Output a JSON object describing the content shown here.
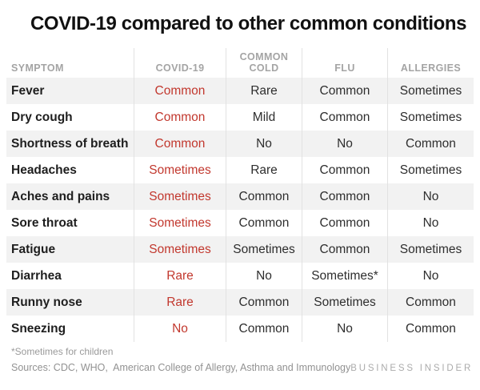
{
  "title": "COVID-19 compared to other common conditions",
  "colors": {
    "accent_red": "#c2382e",
    "row_shade": "#f2f2f2",
    "divider": "#e2e2e2",
    "header_text": "#a4a4a4",
    "body_text": "#2e2e2e"
  },
  "table": {
    "columns": [
      "SYMPTOM",
      "COVID-19",
      "COMMON COLD",
      "FLU",
      "ALLERGIES"
    ],
    "rows": [
      {
        "symptom": "Fever",
        "covid19": "Common",
        "common_cold": "Rare",
        "flu": "Common",
        "allergies": "Sometimes"
      },
      {
        "symptom": "Dry cough",
        "covid19": "Common",
        "common_cold": "Mild",
        "flu": "Common",
        "allergies": "Sometimes"
      },
      {
        "symptom": "Shortness of breath",
        "covid19": "Common",
        "common_cold": "No",
        "flu": "No",
        "allergies": "Common"
      },
      {
        "symptom": "Headaches",
        "covid19": "Sometimes",
        "common_cold": "Rare",
        "flu": "Common",
        "allergies": "Sometimes"
      },
      {
        "symptom": "Aches and pains",
        "covid19": "Sometimes",
        "common_cold": "Common",
        "flu": "Common",
        "allergies": "No"
      },
      {
        "symptom": "Sore throat",
        "covid19": "Sometimes",
        "common_cold": "Common",
        "flu": "Common",
        "allergies": "No"
      },
      {
        "symptom": "Fatigue",
        "covid19": "Sometimes",
        "common_cold": "Sometimes",
        "flu": "Common",
        "allergies": "Sometimes"
      },
      {
        "symptom": "Diarrhea",
        "covid19": "Rare",
        "common_cold": "No",
        "flu": "Sometimes*",
        "allergies": "No"
      },
      {
        "symptom": "Runny nose",
        "covid19": "Rare",
        "common_cold": "Common",
        "flu": "Sometimes",
        "allergies": "Common"
      },
      {
        "symptom": "Sneezing",
        "covid19": "No",
        "common_cold": "Common",
        "flu": "No",
        "allergies": "Common"
      }
    ]
  },
  "chart_data": {
    "type": "table",
    "title": "COVID-19 compared to other common conditions",
    "columns": [
      "SYMPTOM",
      "COVID-19",
      "COMMON COLD",
      "FLU",
      "ALLERGIES"
    ],
    "rows": [
      [
        "Fever",
        "Common",
        "Rare",
        "Common",
        "Sometimes"
      ],
      [
        "Dry cough",
        "Common",
        "Mild",
        "Common",
        "Sometimes"
      ],
      [
        "Shortness of breath",
        "Common",
        "No",
        "No",
        "Common"
      ],
      [
        "Headaches",
        "Sometimes",
        "Rare",
        "Common",
        "Sometimes"
      ],
      [
        "Aches and pains",
        "Sometimes",
        "Common",
        "Common",
        "No"
      ],
      [
        "Sore throat",
        "Sometimes",
        "Common",
        "Common",
        "No"
      ],
      [
        "Fatigue",
        "Sometimes",
        "Sometimes",
        "Common",
        "Sometimes"
      ],
      [
        "Diarrhea",
        "Rare",
        "No",
        "Sometimes*",
        "No"
      ],
      [
        "Runny nose",
        "Rare",
        "Common",
        "Sometimes",
        "Common"
      ],
      [
        "Sneezing",
        "No",
        "Common",
        "No",
        "Common"
      ]
    ],
    "highlight_column": "COVID-19",
    "highlight_color": "#c2382e",
    "footnote": "*Sometimes for children"
  },
  "footnote": "*Sometimes for children",
  "sources": "Sources: CDC, WHO,  American College of Allergy, Asthma and Immunology",
  "brand": "BUSINESS INSIDER"
}
